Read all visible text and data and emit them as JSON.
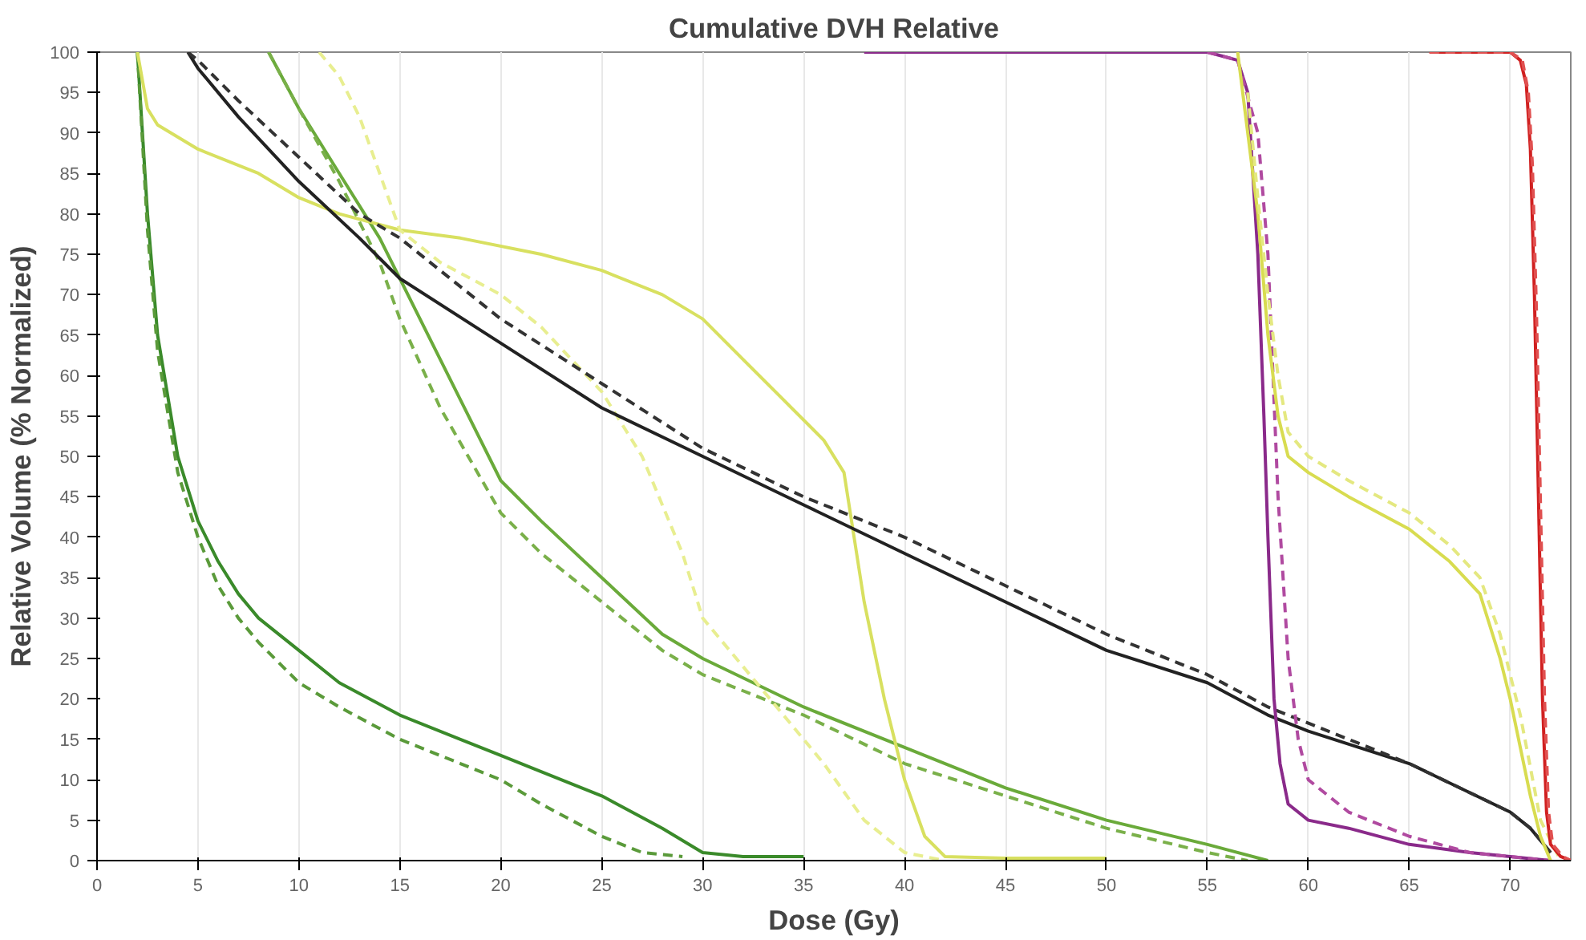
{
  "chart_data": {
    "type": "line",
    "title": "Cumulative DVH Relative",
    "xlabel": "Dose (Gy)",
    "ylabel": "Relative Volume (% Normalized)",
    "xlim": [
      0,
      73
    ],
    "xticks": [
      0,
      5,
      10,
      15,
      20,
      25,
      30,
      35,
      40,
      45,
      50,
      55,
      60,
      65,
      70
    ],
    "ylim": [
      0,
      100
    ],
    "yticks": [
      0,
      5,
      10,
      15,
      20,
      25,
      30,
      35,
      40,
      45,
      50,
      55,
      60,
      65,
      70,
      75,
      80,
      85,
      90,
      95,
      100
    ],
    "grid": "x",
    "series": [
      {
        "color": "#3a8a2a",
        "line_style": "solid",
        "x": [
          2,
          2.5,
          3,
          4,
          5,
          6,
          7,
          8,
          10,
          12,
          15,
          18,
          20,
          22,
          25,
          28,
          30,
          32,
          35
        ],
        "values": [
          100,
          80,
          65,
          50,
          42,
          37,
          33,
          30,
          26,
          22,
          18,
          15,
          13,
          11,
          8,
          4,
          1,
          0.5,
          0.5
        ]
      },
      {
        "color": "#5a9a3a",
        "line_style": "dashed",
        "x": [
          2,
          2.5,
          3,
          4,
          5,
          6,
          7,
          8,
          10,
          12,
          15,
          18,
          20,
          22,
          25,
          27,
          29
        ],
        "values": [
          100,
          78,
          63,
          48,
          40,
          34,
          30,
          27,
          22,
          19,
          15,
          12,
          10,
          7,
          3,
          1,
          0.5
        ]
      },
      {
        "color": "#6aaa3a",
        "line_style": "solid",
        "x": [
          8.5,
          10,
          12,
          14,
          15,
          17,
          20,
          22,
          25,
          28,
          30,
          35,
          40,
          45,
          50,
          55,
          58
        ],
        "values": [
          100,
          93,
          85,
          77,
          72,
          62,
          47,
          42,
          35,
          28,
          25,
          19,
          14,
          9,
          5,
          2,
          0
        ]
      },
      {
        "color": "#7ab04a",
        "line_style": "dashed",
        "x": [
          8.5,
          10,
          12,
          14,
          15,
          17,
          20,
          22,
          25,
          28,
          30,
          35,
          40,
          45,
          50,
          55,
          57
        ],
        "values": [
          100,
          93,
          84,
          74,
          67,
          56,
          43,
          38,
          32,
          26,
          23,
          18,
          12,
          8,
          4,
          1,
          0
        ]
      },
      {
        "color": "#d8e060",
        "line_style": "solid",
        "x": [
          2,
          2.5,
          3,
          5,
          8,
          10,
          12,
          15,
          18,
          22,
          25,
          28,
          30,
          32,
          34,
          36,
          37,
          37.5,
          38,
          39,
          40,
          41,
          42,
          45,
          50
        ],
        "values": [
          100,
          93,
          91,
          88,
          85,
          82,
          80,
          78,
          77,
          75,
          73,
          70,
          67,
          62,
          57,
          52,
          48,
          40,
          32,
          20,
          10,
          3,
          0.5,
          0.3,
          0.3
        ]
      },
      {
        "color": "#e8ee90",
        "line_style": "dashed",
        "x": [
          11,
          12,
          13,
          14,
          15,
          17,
          20,
          22,
          25,
          27,
          29,
          30,
          32,
          34,
          36,
          38,
          40,
          42
        ],
        "values": [
          100,
          97,
          92,
          85,
          78,
          74,
          70,
          66,
          58,
          50,
          38,
          30,
          24,
          18,
          12,
          5,
          1,
          0
        ]
      },
      {
        "color": "#222222",
        "line_style": "solid",
        "x": [
          4.5,
          5,
          7,
          10,
          13,
          15,
          20,
          25,
          30,
          35,
          40,
          45,
          50,
          55,
          58,
          60,
          65,
          70,
          71,
          72
        ],
        "values": [
          100,
          98,
          92,
          84,
          77,
          72,
          64,
          56,
          50,
          44,
          38,
          32,
          26,
          22,
          18,
          16,
          12,
          6,
          4,
          1
        ]
      },
      {
        "color": "#333333",
        "line_style": "dashed",
        "x": [
          4.5,
          5,
          7,
          10,
          13,
          15,
          20,
          25,
          30,
          35,
          40,
          45,
          50,
          55,
          58,
          60,
          65,
          70,
          71,
          72
        ],
        "values": [
          100,
          99,
          94,
          87,
          80,
          77,
          67,
          59,
          51,
          45,
          40,
          34,
          28,
          23,
          19,
          17,
          12,
          6,
          4,
          1
        ]
      },
      {
        "color": "#8a2a8a",
        "line_style": "solid",
        "x": [
          38,
          55,
          56.5,
          57,
          57.5,
          57.8,
          58,
          58.3,
          58.6,
          59,
          60,
          62,
          65,
          68,
          70,
          72
        ],
        "values": [
          100,
          100,
          99,
          95,
          75,
          55,
          40,
          20,
          12,
          7,
          5,
          4,
          2,
          1,
          0.5,
          0
        ]
      },
      {
        "color": "#b04aa0",
        "line_style": "dashed",
        "x": [
          55,
          56.5,
          57.5,
          58,
          58.5,
          59,
          59.5,
          60,
          62,
          65,
          68,
          70,
          72
        ],
        "values": [
          100,
          99,
          90,
          75,
          45,
          25,
          15,
          10,
          6,
          3,
          1,
          0.5,
          0
        ]
      },
      {
        "color": "#d8dc50",
        "line_style": "solid",
        "x": [
          56.5,
          57,
          57.5,
          58,
          58.5,
          59,
          60,
          62,
          65,
          67,
          68.5,
          69,
          69.5,
          70,
          70.5,
          71,
          71.5,
          72
        ],
        "values": [
          100,
          90,
          80,
          65,
          55,
          50,
          48,
          45,
          41,
          37,
          33,
          29,
          25,
          20,
          14,
          8,
          3,
          0
        ]
      },
      {
        "color": "#e4e880",
        "line_style": "dashed",
        "x": [
          57,
          57.5,
          58,
          58.5,
          59,
          60,
          62,
          65,
          67,
          68.5,
          69.5,
          70.5,
          71.5,
          72.5
        ],
        "values": [
          95,
          82,
          70,
          60,
          53,
          50,
          47,
          43,
          39,
          35,
          28,
          18,
          5,
          0
        ]
      },
      {
        "color": "#d02020",
        "line_style": "solid",
        "x": [
          66,
          70,
          70.5,
          70.8,
          71,
          71.2,
          71.4,
          71.6,
          71.8,
          72,
          72.5,
          73
        ],
        "values": [
          100,
          100,
          99,
          96,
          88,
          70,
          45,
          20,
          6,
          2,
          0.5,
          0
        ]
      },
      {
        "color": "#e05050",
        "line_style": "dashed",
        "x": [
          66,
          70,
          70.6,
          70.9,
          71.1,
          71.3,
          71.5,
          71.7,
          71.9,
          72.1,
          72.6,
          73
        ],
        "values": [
          100,
          100,
          99,
          95,
          86,
          68,
          44,
          20,
          6,
          2,
          0.5,
          0
        ]
      }
    ]
  }
}
